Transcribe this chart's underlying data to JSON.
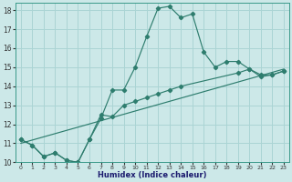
{
  "xlabel": "Humidex (Indice chaleur)",
  "ylabel": "",
  "background_color": "#cce8e8",
  "grid_color": "#aad4d4",
  "line_color": "#2e7d6e",
  "xlim": [
    -0.5,
    23.5
  ],
  "ylim": [
    10,
    18.4
  ],
  "yticks": [
    10,
    11,
    12,
    13,
    14,
    15,
    16,
    17,
    18
  ],
  "xticks": [
    0,
    1,
    2,
    3,
    4,
    5,
    6,
    7,
    8,
    9,
    10,
    11,
    12,
    13,
    14,
    15,
    16,
    17,
    18,
    19,
    20,
    21,
    22,
    23
  ],
  "curve1_x": [
    0,
    1,
    2,
    3,
    4,
    5,
    6,
    7,
    8,
    9,
    10,
    11,
    12,
    13,
    14,
    15,
    16,
    17,
    18,
    19,
    20,
    21,
    22,
    23
  ],
  "curve1_y": [
    11.2,
    10.9,
    10.3,
    10.5,
    10.1,
    10.0,
    11.2,
    12.3,
    13.8,
    13.8,
    15.0,
    16.6,
    18.1,
    18.2,
    17.6,
    17.8,
    15.8,
    15.0,
    15.3,
    15.3,
    14.9,
    14.5,
    14.6,
    14.8
  ],
  "curve2_x": [
    0,
    1,
    2,
    3,
    4,
    5,
    6,
    7,
    8,
    9,
    10,
    11,
    12,
    13,
    14,
    19,
    20,
    21,
    22,
    23
  ],
  "curve2_y": [
    11.2,
    10.9,
    10.3,
    10.5,
    10.1,
    10.0,
    11.2,
    12.5,
    12.4,
    13.0,
    13.2,
    13.4,
    13.6,
    13.8,
    14.0,
    14.7,
    14.9,
    14.6,
    14.6,
    14.8
  ],
  "curve3_x": [
    0,
    23
  ],
  "curve3_y": [
    11.0,
    14.9
  ]
}
